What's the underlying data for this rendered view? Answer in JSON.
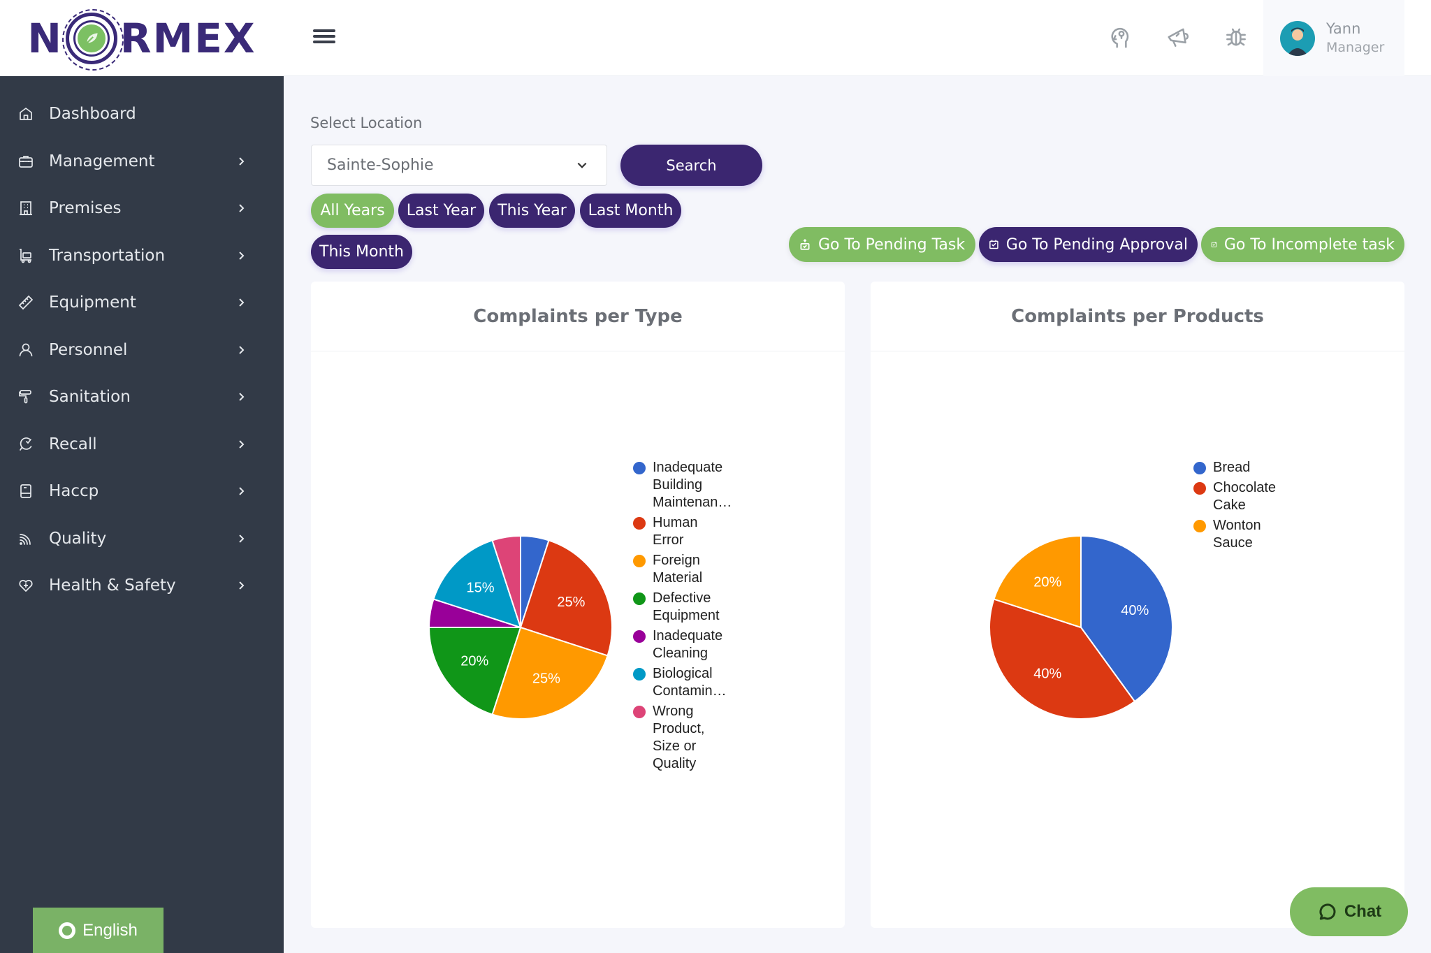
{
  "brand": {
    "name": "NORMEX",
    "name_left": "N",
    "name_right": "RMEX"
  },
  "header": {
    "icons": [
      "idea-head-icon",
      "megaphone-icon",
      "bug-icon"
    ],
    "user": {
      "name": "Yann",
      "role": "Manager"
    }
  },
  "sidebar": {
    "items": [
      {
        "label": "Dashboard",
        "icon": "home-icon",
        "has_children": false
      },
      {
        "label": "Management",
        "icon": "briefcase-icon",
        "has_children": true
      },
      {
        "label": "Premises",
        "icon": "building-icon",
        "has_children": true
      },
      {
        "label": "Transportation",
        "icon": "cart-icon",
        "has_children": true
      },
      {
        "label": "Equipment",
        "icon": "ruler-icon",
        "has_children": true
      },
      {
        "label": "Personnel",
        "icon": "user-icon",
        "has_children": true
      },
      {
        "label": "Sanitation",
        "icon": "paint-roller-icon",
        "has_children": true
      },
      {
        "label": "Recall",
        "icon": "recall-icon",
        "has_children": true
      },
      {
        "label": "Haccp",
        "icon": "book-icon",
        "has_children": true
      },
      {
        "label": "Quality",
        "icon": "rss-icon",
        "has_children": true
      },
      {
        "label": "Health & Safety",
        "icon": "heart-plus-icon",
        "has_children": true
      }
    ],
    "language": "English"
  },
  "filters": {
    "location_label": "Select Location",
    "location_value": "Sainte-Sophie",
    "search_label": "Search",
    "periods": [
      {
        "label": "All Years",
        "active": true
      },
      {
        "label": "Last Year",
        "active": false
      },
      {
        "label": "This Year",
        "active": false
      },
      {
        "label": "Last Month",
        "active": false
      },
      {
        "label": "This Month",
        "active": false
      }
    ]
  },
  "actions": [
    {
      "label": "Go To Pending Task",
      "style": "green"
    },
    {
      "label": "Go To Pending Approval",
      "style": "purple"
    },
    {
      "label": "Go To Incomplete task",
      "style": "green"
    }
  ],
  "colors": {
    "primary": "#3b2670",
    "accent_green": "#80bc62",
    "sidebar_bg": "#323a47"
  },
  "chat_label": "Chat",
  "chart_data": [
    {
      "type": "pie",
      "title": "Complaints per Type",
      "categories": [
        "Inadequate Building Maintenan…",
        "Human Error",
        "Foreign Material",
        "Defective Equipment",
        "Inadequate Cleaning",
        "Biological Contamin…",
        "Wrong Product, Size or Quality"
      ],
      "legend_labels": [
        "Inadequate\nBuilding\nMaintenan…",
        "Human\nError",
        "Foreign\nMaterial",
        "Defective\nEquipment",
        "Inadequate\nCleaning",
        "Biological\nContamin…",
        "Wrong\nProduct,\nSize or\nQuality"
      ],
      "values": [
        5,
        25,
        25,
        20,
        5,
        15,
        5
      ],
      "slice_labels": [
        "",
        "25%",
        "25%",
        "20%",
        "",
        "15%",
        ""
      ],
      "colors": [
        "#3366cc",
        "#dc3912",
        "#ff9900",
        "#109618",
        "#990099",
        "#0099c6",
        "#dd4477"
      ],
      "legend_position": "right"
    },
    {
      "type": "pie",
      "title": "Complaints per Products",
      "categories": [
        "Bread",
        "Chocolate Cake",
        "Wonton Sauce"
      ],
      "legend_labels": [
        "Bread",
        "Chocolate\nCake",
        "Wonton\nSauce"
      ],
      "values": [
        40,
        40,
        20
      ],
      "slice_labels": [
        "40%",
        "40%",
        "20%"
      ],
      "colors": [
        "#3366cc",
        "#dc3912",
        "#ff9900"
      ],
      "legend_position": "right"
    }
  ]
}
